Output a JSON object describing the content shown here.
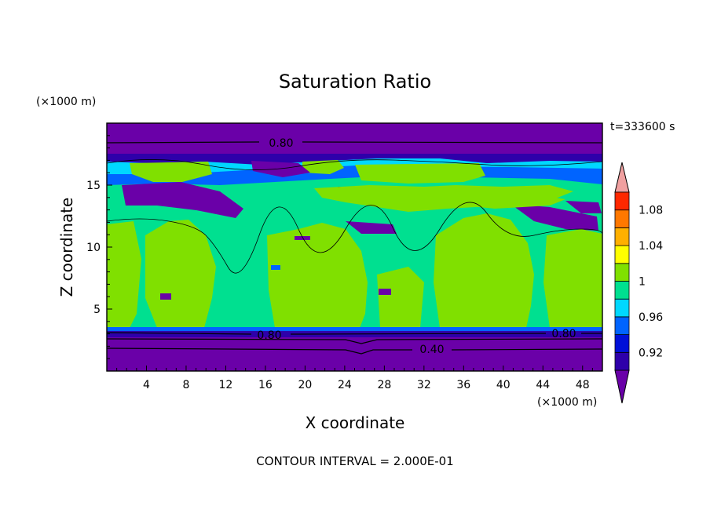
{
  "chart_data": {
    "type": "heatmap",
    "title": "Saturation Ratio",
    "xlabel": "X coordinate",
    "ylabel": "Z coordinate",
    "x_unit": "(×1000 m)",
    "y_unit": "(×1000 m)",
    "time_label": "t=333600 s",
    "footer": "CONTOUR INTERVAL = 2.000E-01",
    "xlim": [
      0,
      50
    ],
    "ylim": [
      0,
      20
    ],
    "x_ticks": [
      "4",
      "8",
      "12",
      "16",
      "20",
      "24",
      "28",
      "32",
      "36",
      "40",
      "44",
      "48"
    ],
    "y_ticks": [
      "5",
      "10",
      "15"
    ],
    "colorbar": {
      "colors": [
        "#6a00a8",
        "#2e00aa",
        "#0010d8",
        "#0064ff",
        "#00d8ff",
        "#00e090",
        "#80e000",
        "#ffff00",
        "#ffb000",
        "#ff7800",
        "#ff2800",
        "#f0a0a0"
      ],
      "labels": [
        "0.92",
        "0.96",
        "1",
        "1.04",
        "1.08"
      ]
    },
    "contour_labels": [
      "0.80",
      "0.80",
      "0.80",
      "0.40"
    ],
    "colors": {
      "purple": "#6a00a8",
      "indigo": "#2e00aa",
      "blue": "#0010d8",
      "lightblue": "#00c8ff",
      "teal": "#00e090",
      "lime": "#80e000"
    }
  }
}
